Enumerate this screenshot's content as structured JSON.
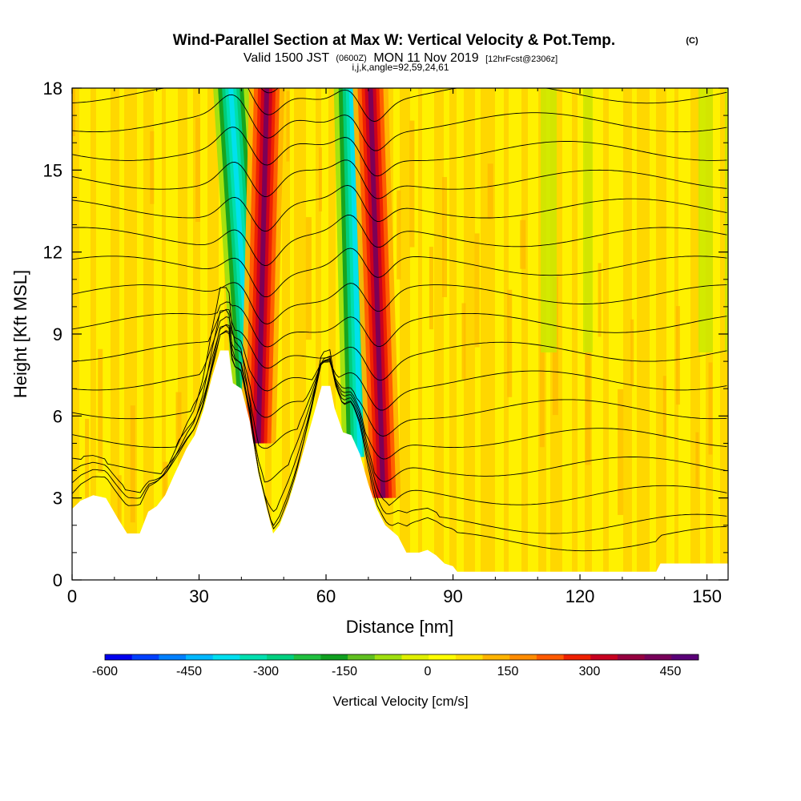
{
  "title": {
    "main": "Wind-Parallel Section at Max W: Vertical Velocity & Pot.Temp.",
    "copyright": "(C)",
    "valid_a": "Valid 1500 JST",
    "valid_z": "(0600Z)",
    "valid_b": "MON 11 Nov 2019",
    "fcst": "[12hrFcst@2306z]",
    "indices": "i,j,k,angle=92,59,24,61"
  },
  "chart_data": {
    "type": "heatmap",
    "title": "Wind-Parallel Section at Max W: Vertical Velocity & Pot.Temp.",
    "xlabel": "Distance [nm]",
    "ylabel": "Height [Kft MSL]",
    "xlim": [
      0,
      155
    ],
    "ylim": [
      0,
      18
    ],
    "x_ticks": [
      0,
      30,
      60,
      90,
      120,
      150
    ],
    "y_ticks": [
      0,
      3,
      6,
      9,
      12,
      15,
      18
    ],
    "terrain_profile_kft": [
      [
        0,
        2.6
      ],
      [
        2,
        2.9
      ],
      [
        5,
        3.1
      ],
      [
        8,
        3.0
      ],
      [
        11,
        2.2
      ],
      [
        13,
        1.7
      ],
      [
        16,
        1.7
      ],
      [
        18,
        2.5
      ],
      [
        20,
        2.7
      ],
      [
        22,
        3.1
      ],
      [
        24,
        3.8
      ],
      [
        27,
        4.8
      ],
      [
        29,
        5.3
      ],
      [
        31,
        6.2
      ],
      [
        33,
        7.4
      ],
      [
        35,
        8.4
      ],
      [
        37,
        8.4
      ],
      [
        38,
        7.2
      ],
      [
        40,
        7.0
      ],
      [
        42,
        5.8
      ],
      [
        44,
        3.9
      ],
      [
        46,
        2.6
      ],
      [
        47.5,
        1.7
      ],
      [
        49,
        2.0
      ],
      [
        51,
        2.8
      ],
      [
        53,
        3.8
      ],
      [
        55,
        4.9
      ],
      [
        57,
        6.0
      ],
      [
        59,
        7.1
      ],
      [
        61,
        7.1
      ],
      [
        62,
        6.3
      ],
      [
        64,
        5.4
      ],
      [
        66,
        5.3
      ],
      [
        68,
        4.6
      ],
      [
        70,
        3.5
      ],
      [
        72,
        2.6
      ],
      [
        74,
        2.0
      ],
      [
        77,
        1.6
      ],
      [
        79,
        1.0
      ],
      [
        82,
        1.0
      ],
      [
        84,
        1.1
      ],
      [
        86,
        0.9
      ],
      [
        88,
        0.6
      ],
      [
        90,
        0.5
      ],
      [
        91,
        0.3
      ],
      [
        138,
        0.3
      ],
      [
        139,
        0.6
      ],
      [
        155,
        0.6
      ]
    ],
    "updraft_axes": [
      {
        "base_x_nm": 44.0,
        "top_x_nm": 46.0,
        "base_kft": 5.0
      },
      {
        "base_x_nm": 73.5,
        "top_x_nm": 70.5,
        "base_kft": 3.0
      }
    ],
    "downdraft_axes": [
      {
        "base_x_nm": 42.5,
        "top_x_nm": 37.5,
        "base_kft": 5.5
      },
      {
        "base_x_nm": 68.0,
        "top_x_nm": 66.0,
        "base_kft": 4.5
      }
    ],
    "colorbar": {
      "label": "Vertical Velocity [cm/s]",
      "ticks": [
        "-600",
        "-450",
        "-300",
        "-150",
        "0",
        "150",
        "300",
        "450"
      ],
      "colors": [
        "#0000ee",
        "#0040ff",
        "#0080ff",
        "#00b8ff",
        "#00e0f0",
        "#00e0b0",
        "#00d080",
        "#20c040",
        "#10a020",
        "#60c020",
        "#a0e010",
        "#e0f000",
        "#ffff00",
        "#ffe000",
        "#ffb400",
        "#ff8c00",
        "#ff5a00",
        "#ee2000",
        "#c80020",
        "#960040",
        "#78005a",
        "#5a0078"
      ]
    }
  }
}
